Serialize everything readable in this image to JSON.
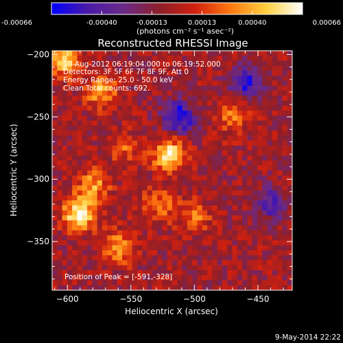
{
  "colorbar": {
    "ticks": [
      "-0.00066",
      "-0.00040",
      "-0.00013",
      "0.00013",
      "0.00040",
      "0.00066"
    ],
    "stops": [
      "#0000ff",
      "#4a1aa8",
      "#6a2a8a",
      "#8c1f2a",
      "#d02010",
      "#ff7a10",
      "#ffd040",
      "#ffffff"
    ]
  },
  "header": {
    "units": "(photons cm",
    "units_full": "(photons cm⁻² s⁻¹ asec⁻²)",
    "title": "Reconstructed RHESSI Image"
  },
  "annotations": {
    "time_range": "10-Aug-2012 06:19:04.000 to 06:19:52.000",
    "detectors": "Detectors: 3F 5F 6F 7F 8F 9F, Att 0",
    "energy": "Energy Range: 25.0 - 50.0 keV",
    "clean": "Clean      Total counts: 692.",
    "peak": "Position of Peak = [-591,-328]"
  },
  "footer": {
    "timestamp": "9-May-2014 22:22"
  },
  "chart_data": {
    "type": "heatmap",
    "title": "Reconstructed RHESSI Image",
    "xlabel": "Heliocentric X (arcsec)",
    "ylabel": "Heliocentric Y (arcsec)",
    "xlim": [
      -612,
      -423
    ],
    "ylim": [
      -389,
      -197
    ],
    "xticks": [
      -600,
      -550,
      -500,
      -450
    ],
    "yticks": [
      -200,
      -250,
      -300,
      -350
    ],
    "xtick_labels": [
      "−600",
      "−550",
      "−500",
      "−450"
    ],
    "ytick_labels": [
      "−200",
      "−250",
      "−300",
      "−350"
    ],
    "zlim": [
      -0.00066,
      0.00066
    ],
    "peak": [
      -591,
      -328
    ],
    "sources": [
      {
        "x": -591,
        "y": -328,
        "amp": 0.00066
      },
      {
        "x": -604,
        "y": -205,
        "amp": 0.00055
      },
      {
        "x": -573,
        "y": -230,
        "amp": 0.00042
      },
      {
        "x": -520,
        "y": -280,
        "amp": 0.0006
      },
      {
        "x": -580,
        "y": -305,
        "amp": 0.0004
      },
      {
        "x": -560,
        "y": -355,
        "amp": 0.0004
      },
      {
        "x": -470,
        "y": -250,
        "amp": 0.0003
      },
      {
        "x": -555,
        "y": -275,
        "amp": 0.00025
      },
      {
        "x": -500,
        "y": -330,
        "amp": 0.0003
      },
      {
        "x": -527,
        "y": -320,
        "amp": 0.00032
      }
    ],
    "negatives": [
      {
        "x": -512,
        "y": -250,
        "amp": -0.0006
      },
      {
        "x": -460,
        "y": -222,
        "amp": -0.0005
      },
      {
        "x": -440,
        "y": -320,
        "amp": -0.0004
      }
    ]
  }
}
